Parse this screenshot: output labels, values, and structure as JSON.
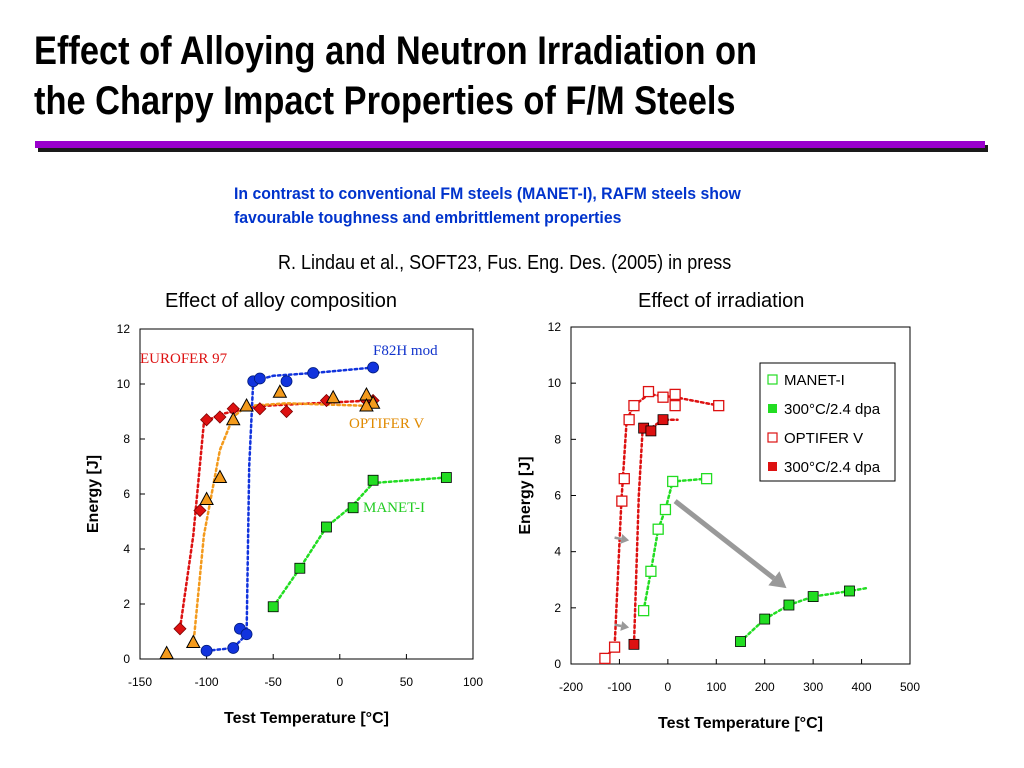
{
  "slide": {
    "title_line1": "Effect of Alloying and Neutron Irradiation on",
    "title_line2": "the Charpy Impact Properties of F/M Steels",
    "subtitle_line1": "In contrast to conventional FM steels (MANET-I), RAFM steels show",
    "subtitle_line2": "favourable toughness and embrittlement properties",
    "citation": "R. Lindau et al., SOFT23, Fus. Eng. Des. (2005) in press",
    "accent_color": "#9900cc",
    "subtitle_color": "#0033cc"
  },
  "chart_data": [
    {
      "type": "scatter",
      "title": "Effect of alloy composition",
      "xlabel": "Test Temperature [°C]",
      "ylabel": "Energy [J]",
      "xlim": [
        -150,
        100
      ],
      "ylim": [
        0,
        12
      ],
      "xticks": [
        -150,
        -100,
        -50,
        0,
        50,
        100
      ],
      "yticks": [
        0,
        2,
        4,
        6,
        8,
        10,
        12
      ],
      "grid": false,
      "series": [
        {
          "name": "EUROFER 97",
          "color": "#dd1111",
          "label_color": "#dd1111",
          "marker": "diamond",
          "points": [
            [
              -120,
              1.1
            ],
            [
              -105,
              5.4
            ],
            [
              -100,
              8.7
            ],
            [
              -90,
              8.8
            ],
            [
              -80,
              9.1
            ],
            [
              -60,
              9.1
            ],
            [
              -40,
              9.0
            ],
            [
              -10,
              9.4
            ],
            [
              20,
              9.4
            ],
            [
              25,
              9.4
            ]
          ],
          "line": [
            [
              -120,
              1.1
            ],
            [
              -110,
              4.5
            ],
            [
              -102,
              8.6
            ],
            [
              -90,
              8.9
            ],
            [
              -60,
              9.2
            ],
            [
              -20,
              9.3
            ],
            [
              25,
              9.4
            ]
          ]
        },
        {
          "name": "OPTIFER V",
          "color": "#f39a1c",
          "label_color": "#e08a00",
          "marker": "triangle",
          "points": [
            [
              -130,
              0.2
            ],
            [
              -110,
              0.6
            ],
            [
              -100,
              5.8
            ],
            [
              -90,
              6.6
            ],
            [
              -80,
              8.7
            ],
            [
              -70,
              9.2
            ],
            [
              -45,
              9.7
            ],
            [
              -5,
              9.5
            ],
            [
              20,
              9.6
            ],
            [
              25,
              9.3
            ],
            [
              20,
              9.2
            ]
          ],
          "line": [
            [
              -110,
              0.5
            ],
            [
              -102,
              4.5
            ],
            [
              -90,
              7.6
            ],
            [
              -80,
              8.8
            ],
            [
              -70,
              9.2
            ],
            [
              -40,
              9.3
            ],
            [
              25,
              9.2
            ]
          ]
        },
        {
          "name": "F82H mod",
          "color": "#1133dd",
          "label_color": "#1133cc",
          "marker": "circle",
          "points": [
            [
              -100,
              0.3
            ],
            [
              -80,
              0.4
            ],
            [
              -75,
              1.1
            ],
            [
              -70,
              0.9
            ],
            [
              -65,
              10.1
            ],
            [
              -60,
              10.2
            ],
            [
              -40,
              10.1
            ],
            [
              -20,
              10.4
            ],
            [
              25,
              10.6
            ]
          ],
          "line": [
            [
              -100,
              0.3
            ],
            [
              -80,
              0.4
            ],
            [
              -70,
              0.9
            ],
            [
              -68,
              7.0
            ],
            [
              -65,
              10.1
            ],
            [
              -50,
              10.3
            ],
            [
              -20,
              10.4
            ],
            [
              25,
              10.6
            ]
          ]
        },
        {
          "name": "MANET-I",
          "color": "#22dd22",
          "label_color": "#22cc22",
          "marker": "square",
          "points": [
            [
              -50,
              1.9
            ],
            [
              -30,
              3.3
            ],
            [
              -10,
              4.8
            ],
            [
              10,
              5.5
            ],
            [
              25,
              6.5
            ],
            [
              80,
              6.6
            ]
          ],
          "line": [
            [
              -50,
              1.9
            ],
            [
              -30,
              3.3
            ],
            [
              -10,
              4.8
            ],
            [
              10,
              5.6
            ],
            [
              25,
              6.4
            ],
            [
              80,
              6.6
            ]
          ]
        }
      ],
      "annotations": [
        {
          "text": "EUROFER 97",
          "series": "EUROFER 97"
        },
        {
          "text": "F82H mod",
          "series": "F82H mod"
        },
        {
          "text": "OPTIFER V",
          "series": "OPTIFER V"
        },
        {
          "text": "MANET-I",
          "series": "MANET-I"
        }
      ]
    },
    {
      "type": "scatter",
      "title": "Effect of irradiation",
      "xlabel": "Test Temperature [°C]",
      "ylabel": "Energy [J]",
      "xlim": [
        -200,
        500
      ],
      "ylim": [
        0,
        12
      ],
      "xticks": [
        -200,
        -100,
        0,
        100,
        200,
        300,
        400,
        500
      ],
      "yticks": [
        0,
        2,
        4,
        6,
        8,
        10,
        12
      ],
      "grid": false,
      "legend": {
        "position": "right",
        "entries": [
          "MANET-I",
          "300°C/2.4 dpa",
          "OPTIFER V",
          "300°C/2.4 dpa"
        ]
      },
      "series": [
        {
          "name": "MANET-I",
          "color": "#22dd22",
          "marker": "hollow-square",
          "points": [
            [
              -50,
              1.9
            ],
            [
              -35,
              3.3
            ],
            [
              -20,
              4.8
            ],
            [
              -5,
              5.5
            ],
            [
              10,
              6.5
            ],
            [
              80,
              6.6
            ]
          ],
          "line": [
            [
              -50,
              1.9
            ],
            [
              -35,
              3.3
            ],
            [
              -20,
              4.8
            ],
            [
              -5,
              5.5
            ],
            [
              10,
              6.5
            ],
            [
              80,
              6.6
            ]
          ]
        },
        {
          "name": "300°C/2.4 dpa",
          "color": "#22dd22",
          "marker": "filled-square",
          "points": [
            [
              150,
              0.8
            ],
            [
              200,
              1.6
            ],
            [
              250,
              2.1
            ],
            [
              300,
              2.4
            ],
            [
              375,
              2.6
            ]
          ],
          "line": [
            [
              150,
              0.8
            ],
            [
              200,
              1.6
            ],
            [
              250,
              2.1
            ],
            [
              300,
              2.4
            ],
            [
              375,
              2.6
            ],
            [
              410,
              2.7
            ]
          ]
        },
        {
          "name": "OPTIFER V",
          "color": "#dd1111",
          "marker": "hollow-square",
          "points": [
            [
              -130,
              0.2
            ],
            [
              -110,
              0.6
            ],
            [
              -95,
              5.8
            ],
            [
              -90,
              6.6
            ],
            [
              -80,
              8.7
            ],
            [
              -70,
              9.2
            ],
            [
              -40,
              9.7
            ],
            [
              -10,
              9.5
            ],
            [
              15,
              9.6
            ],
            [
              15,
              9.2
            ],
            [
              105,
              9.2
            ]
          ],
          "line": [
            [
              -130,
              0.2
            ],
            [
              -110,
              0.6
            ],
            [
              -96,
              5.8
            ],
            [
              -85,
              8.7
            ],
            [
              -70,
              9.2
            ],
            [
              -40,
              9.6
            ],
            [
              15,
              9.5
            ],
            [
              105,
              9.2
            ]
          ]
        },
        {
          "name": "300°C/2.4 dpa",
          "color": "#dd1111",
          "marker": "filled-square",
          "points": [
            [
              -70,
              0.7
            ],
            [
              -50,
              8.4
            ],
            [
              -35,
              8.3
            ],
            [
              -10,
              8.7
            ]
          ],
          "line": [
            [
              -70,
              0.7
            ],
            [
              -60,
              6.0
            ],
            [
              -52,
              8.4
            ],
            [
              -35,
              8.4
            ],
            [
              -10,
              8.7
            ],
            [
              20,
              8.7
            ]
          ]
        }
      ],
      "arrows": [
        {
          "from": [
            -110,
            4.5
          ],
          "to": [
            -80,
            4.4
          ],
          "color": "#999999"
        },
        {
          "from": [
            -110,
            1.4
          ],
          "to": [
            -80,
            1.3
          ],
          "color": "#999999"
        },
        {
          "from": [
            15,
            5.8
          ],
          "to": [
            245,
            2.7
          ],
          "color": "#999999"
        }
      ]
    }
  ]
}
